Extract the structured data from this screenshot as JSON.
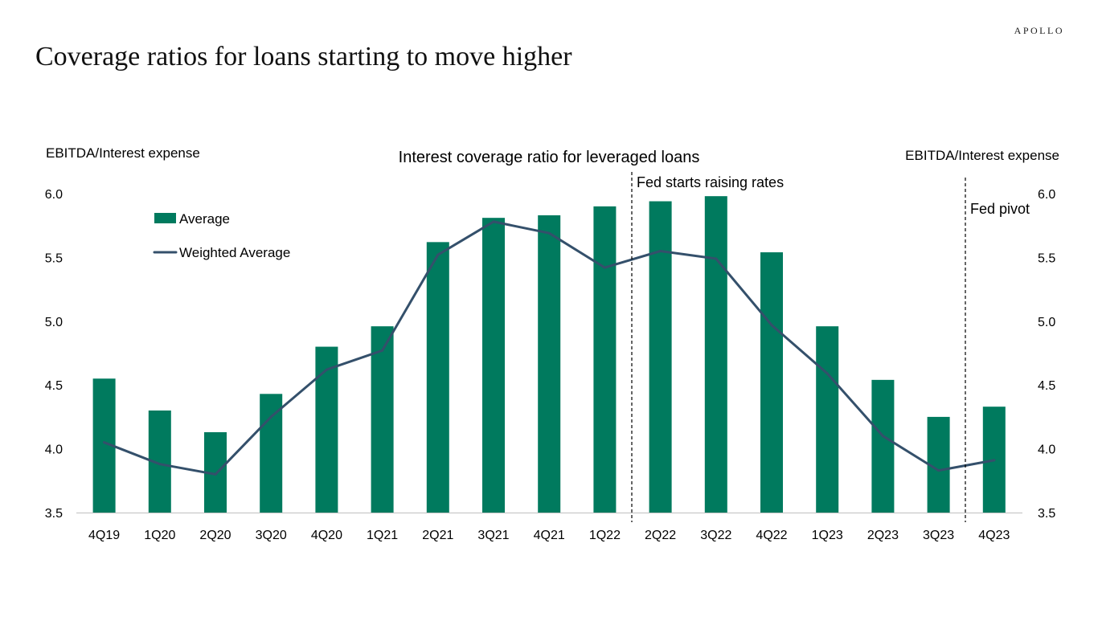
{
  "brand": "APOLLO",
  "page_title": "Coverage ratios for loans starting to move higher",
  "colors": {
    "bar": "#007A5E",
    "line": "#34506B",
    "axis": "#bfbfbf"
  },
  "chart_data": {
    "type": "bar",
    "title": "Interest coverage ratio for leveraged loans",
    "ylabel_left": "EBITDA/Interest expense",
    "ylabel_right": "EBITDA/Interest expense",
    "ylim": [
      3.5,
      6.0
    ],
    "yticks": [
      "6.0",
      "5.5",
      "5.0",
      "4.5",
      "4.0",
      "3.5"
    ],
    "ytick_values": [
      6.0,
      5.5,
      5.0,
      4.5,
      4.0,
      3.5
    ],
    "categories": [
      "4Q19",
      "1Q20",
      "2Q20",
      "3Q20",
      "4Q20",
      "1Q21",
      "2Q21",
      "3Q21",
      "4Q21",
      "1Q22",
      "2Q22",
      "3Q22",
      "4Q22",
      "1Q23",
      "2Q23",
      "3Q23",
      "4Q23"
    ],
    "series": [
      {
        "name": "Average",
        "type": "bar",
        "values": [
          4.55,
          4.3,
          4.13,
          4.43,
          4.8,
          4.96,
          5.62,
          5.81,
          5.83,
          5.9,
          5.94,
          5.98,
          5.54,
          4.96,
          4.54,
          4.25,
          4.33
        ]
      },
      {
        "name": "Weighted Average",
        "type": "line",
        "values": [
          4.05,
          3.88,
          3.8,
          4.25,
          4.62,
          4.77,
          5.52,
          5.78,
          5.69,
          5.42,
          5.55,
          5.49,
          4.97,
          4.59,
          4.1,
          3.83,
          3.91
        ]
      }
    ],
    "legend_position": "top-left",
    "annotations": [
      {
        "text": "Fed starts raising rates",
        "between": [
          "1Q22",
          "2Q22"
        ]
      },
      {
        "text": "Fed pivot",
        "between": [
          "3Q23",
          "4Q23"
        ]
      }
    ]
  }
}
